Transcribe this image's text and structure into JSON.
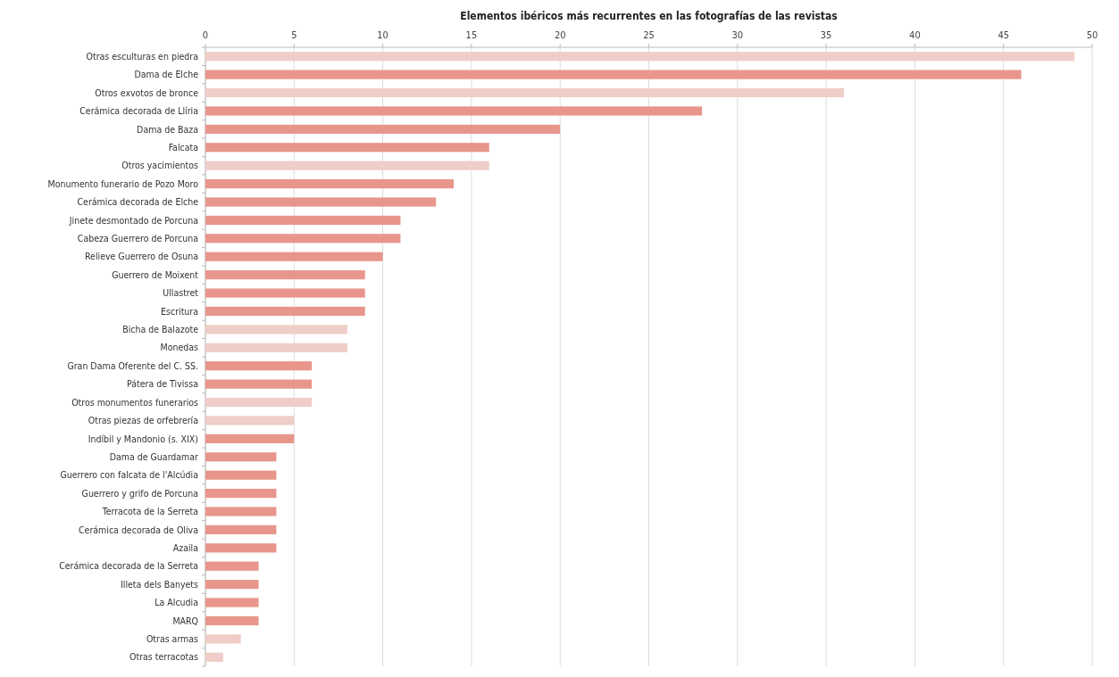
{
  "chart_data": {
    "type": "bar",
    "orientation": "horizontal",
    "title": "Elementos ibéricos más recurrentes en las fotografías de las revistas",
    "categories": [
      "Otras esculturas en piedra",
      "Dama de Elche",
      "Otros exvotos de bronce",
      "Cerámica decorada de Llíria",
      "Dama de Baza",
      "Falcata",
      "Otros yacimientos",
      "Monumento funerario de Pozo Moro",
      "Cerámica decorada de Elche",
      "Jinete desmontado de Porcuna",
      "Cabeza Guerrero de Porcuna",
      "Relieve Guerrero de Osuna",
      "Guerrero de Moixent",
      "Ullastret",
      "Escritura",
      "Bicha de Balazote",
      "Monedas",
      "Gran Dama Oferente del C. SS.",
      "Pátera de Tivissa",
      "Otros monumentos funerarios",
      "Otras piezas de orfebrería",
      "Indíbil y Mandonio (s. XIX)",
      "Dama de Guardamar",
      "Guerrero con falcata de l'Alcúdia",
      "Guerrero y grifo de Porcuna",
      "Terracota de la Serreta",
      "Cerámica decorada de Oliva",
      "Azaila",
      "Cerámica decorada de la Serreta",
      "Illeta dels Banyets",
      "La Alcudia",
      "MARQ",
      "Otras armas",
      "Otras terracotas"
    ],
    "values": [
      49,
      46,
      36,
      28,
      20,
      16,
      16,
      14,
      13,
      11,
      11,
      10,
      9,
      9,
      9,
      8,
      8,
      6,
      6,
      6,
      5,
      5,
      4,
      4,
      4,
      4,
      4,
      4,
      3,
      3,
      3,
      3,
      2,
      1
    ],
    "colors": [
      "#f0cdc8",
      "#e8968c",
      "#f0cdc8",
      "#e8968c",
      "#e8968c",
      "#e8968c",
      "#f0cdc8",
      "#e8968c",
      "#e8968c",
      "#e8968c",
      "#e8968c",
      "#e8968c",
      "#e8968c",
      "#e8968c",
      "#e8968c",
      "#f0cdc8",
      "#f0cdc8",
      "#e8968c",
      "#e8968c",
      "#f0cdc8",
      "#f0cdc8",
      "#e8968c",
      "#e8968c",
      "#e8968c",
      "#e8968c",
      "#e8968c",
      "#e8968c",
      "#e8968c",
      "#e8968c",
      "#e8968c",
      "#e8968c",
      "#e8968c",
      "#f0cdc8",
      "#f0cdc8"
    ],
    "xlim": [
      0,
      50
    ],
    "xticks": [
      0,
      5,
      10,
      15,
      20,
      25,
      30,
      35,
      40,
      45,
      50
    ],
    "grid": "x"
  }
}
